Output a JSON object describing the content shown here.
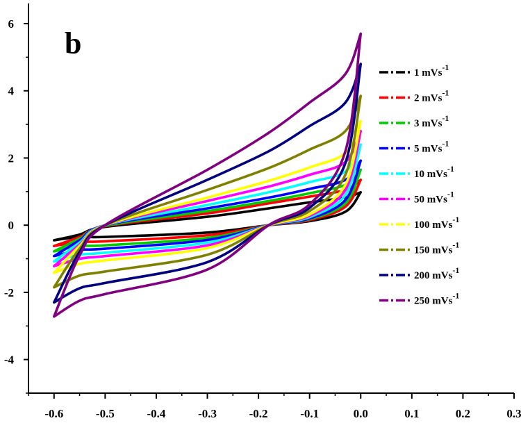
{
  "chart_data": {
    "type": "line",
    "panel_label": "b",
    "xlabel": "",
    "ylabel": "",
    "xlim": [
      -0.65,
      0.3
    ],
    "ylim": [
      -5,
      6.6
    ],
    "x_ticks": [
      -0.6,
      -0.5,
      -0.4,
      -0.3,
      -0.2,
      -0.1,
      0.0,
      0.1,
      0.2,
      0.3
    ],
    "x_tick_labels": [
      "-0.6",
      "-0.5",
      "-0.4",
      "-0.3",
      "-0.2",
      "-0.1",
      "0.0",
      "0.1",
      "0.2",
      "0.3"
    ],
    "y_ticks": [
      -4,
      -2,
      0,
      2,
      4,
      6
    ],
    "y_tick_labels": [
      "-4",
      "-2",
      "0",
      "2",
      "4",
      "6"
    ],
    "grid": false,
    "legend_position": "right",
    "series": [
      {
        "name": "1 mVs-1",
        "rate_text": "1 mVs",
        "sup": "-1",
        "color": "#000000",
        "x_points": [
          -0.6,
          -0.55,
          -0.5,
          -0.3,
          -0.18,
          -0.1,
          -0.03,
          0.0
        ],
        "anodic": [
          -0.45,
          -0.28,
          -0.05,
          0.25,
          0.5,
          0.68,
          0.82,
          0.98
        ],
        "cathodic": [
          -0.45,
          -0.35,
          -0.35,
          -0.22,
          0.0,
          0.12,
          0.4,
          0.98
        ]
      },
      {
        "name": "2 mVs-1",
        "rate_text": "2 mVs",
        "sup": "-1",
        "color": "#ff0000",
        "x_points": [
          -0.6,
          -0.55,
          -0.5,
          -0.3,
          -0.18,
          -0.1,
          -0.03,
          0.0
        ],
        "anodic": [
          -0.62,
          -0.35,
          -0.03,
          0.35,
          0.65,
          0.85,
          1.05,
          1.35
        ],
        "cathodic": [
          -0.62,
          -0.5,
          -0.48,
          -0.3,
          0.0,
          0.15,
          0.55,
          1.35
        ]
      },
      {
        "name": "3 mVs-1",
        "rate_text": "3 mVs",
        "sup": "-1",
        "color": "#00cc00",
        "x_points": [
          -0.6,
          -0.55,
          -0.5,
          -0.3,
          -0.18,
          -0.1,
          -0.03,
          0.0
        ],
        "anodic": [
          -0.78,
          -0.4,
          -0.02,
          0.42,
          0.72,
          0.95,
          1.2,
          1.65
        ],
        "cathodic": [
          -0.78,
          -0.62,
          -0.6,
          -0.38,
          0.0,
          0.18,
          0.65,
          1.65
        ]
      },
      {
        "name": "5 mVs-1",
        "rate_text": "5 mVs",
        "sup": "-1",
        "color": "#0000ff",
        "x_points": [
          -0.6,
          -0.55,
          -0.5,
          -0.3,
          -0.18,
          -0.1,
          -0.03,
          0.0
        ],
        "anodic": [
          -0.92,
          -0.45,
          0.0,
          0.5,
          0.82,
          1.08,
          1.35,
          1.92
        ],
        "cathodic": [
          -0.92,
          -0.74,
          -0.7,
          -0.44,
          0.0,
          0.2,
          0.75,
          1.92
        ]
      },
      {
        "name": "10 mVs-1",
        "rate_text": "10 mVs",
        "sup": "-1",
        "color": "#00ffff",
        "x_points": [
          -0.6,
          -0.55,
          -0.5,
          -0.3,
          -0.18,
          -0.1,
          -0.03,
          0.0
        ],
        "anodic": [
          -1.08,
          -0.52,
          0.0,
          0.6,
          0.98,
          1.28,
          1.6,
          2.4
        ],
        "cathodic": [
          -1.08,
          -0.88,
          -0.82,
          -0.52,
          0.0,
          0.24,
          0.9,
          2.4
        ]
      },
      {
        "name": "50 mVs-1",
        "rate_text": "50 mVs",
        "sup": "-1",
        "color": "#ff00ff",
        "x_points": [
          -0.6,
          -0.55,
          -0.5,
          -0.3,
          -0.18,
          -0.1,
          -0.03,
          0.0
        ],
        "anodic": [
          -1.22,
          -0.58,
          0.0,
          0.72,
          1.15,
          1.5,
          1.88,
          2.8
        ],
        "cathodic": [
          -1.22,
          -1.0,
          -0.92,
          -0.6,
          0.0,
          0.28,
          1.05,
          2.8
        ]
      },
      {
        "name": "100 mVs-1",
        "rate_text": "100 mVs",
        "sup": "-1",
        "color": "#ffff00",
        "x_points": [
          -0.6,
          -0.55,
          -0.5,
          -0.3,
          -0.18,
          -0.1,
          -0.03,
          0.0
        ],
        "anodic": [
          -1.42,
          -0.62,
          0.0,
          0.82,
          1.32,
          1.72,
          2.15,
          3.1
        ],
        "cathodic": [
          -1.42,
          -1.15,
          -1.05,
          -0.68,
          0.0,
          0.32,
          1.2,
          3.1
        ]
      },
      {
        "name": "150 mVs-1",
        "rate_text": "150 mVs",
        "sup": "-1",
        "color": "#808000",
        "x_points": [
          -0.6,
          -0.55,
          -0.5,
          -0.3,
          -0.18,
          -0.1,
          -0.03,
          0.0
        ],
        "anodic": [
          -1.85,
          -0.7,
          0.0,
          1.05,
          1.7,
          2.25,
          2.8,
          3.85
        ],
        "cathodic": [
          -1.85,
          -1.5,
          -1.38,
          -0.88,
          0.0,
          0.42,
          1.5,
          3.85
        ]
      },
      {
        "name": "200 mVs-1",
        "rate_text": "200 mVs",
        "sup": "-1",
        "color": "#000080",
        "x_points": [
          -0.6,
          -0.55,
          -0.5,
          -0.3,
          -0.18,
          -0.1,
          -0.03,
          0.0
        ],
        "anodic": [
          -2.3,
          -0.8,
          0.0,
          1.35,
          2.2,
          2.95,
          3.65,
          4.8
        ],
        "cathodic": [
          -2.3,
          -1.88,
          -1.72,
          -1.1,
          0.0,
          0.52,
          1.85,
          4.8
        ]
      },
      {
        "name": "250 mVs-1",
        "rate_text": "250 mVs",
        "sup": "-1",
        "color": "#800080",
        "x_points": [
          -0.6,
          -0.55,
          -0.5,
          -0.3,
          -0.18,
          -0.1,
          -0.03,
          0.0
        ],
        "anodic": [
          -2.72,
          -0.9,
          0.0,
          1.65,
          2.75,
          3.65,
          4.5,
          5.7
        ],
        "cathodic": [
          -2.72,
          -2.25,
          -2.05,
          -1.32,
          0.0,
          0.62,
          2.2,
          5.7
        ]
      }
    ]
  }
}
